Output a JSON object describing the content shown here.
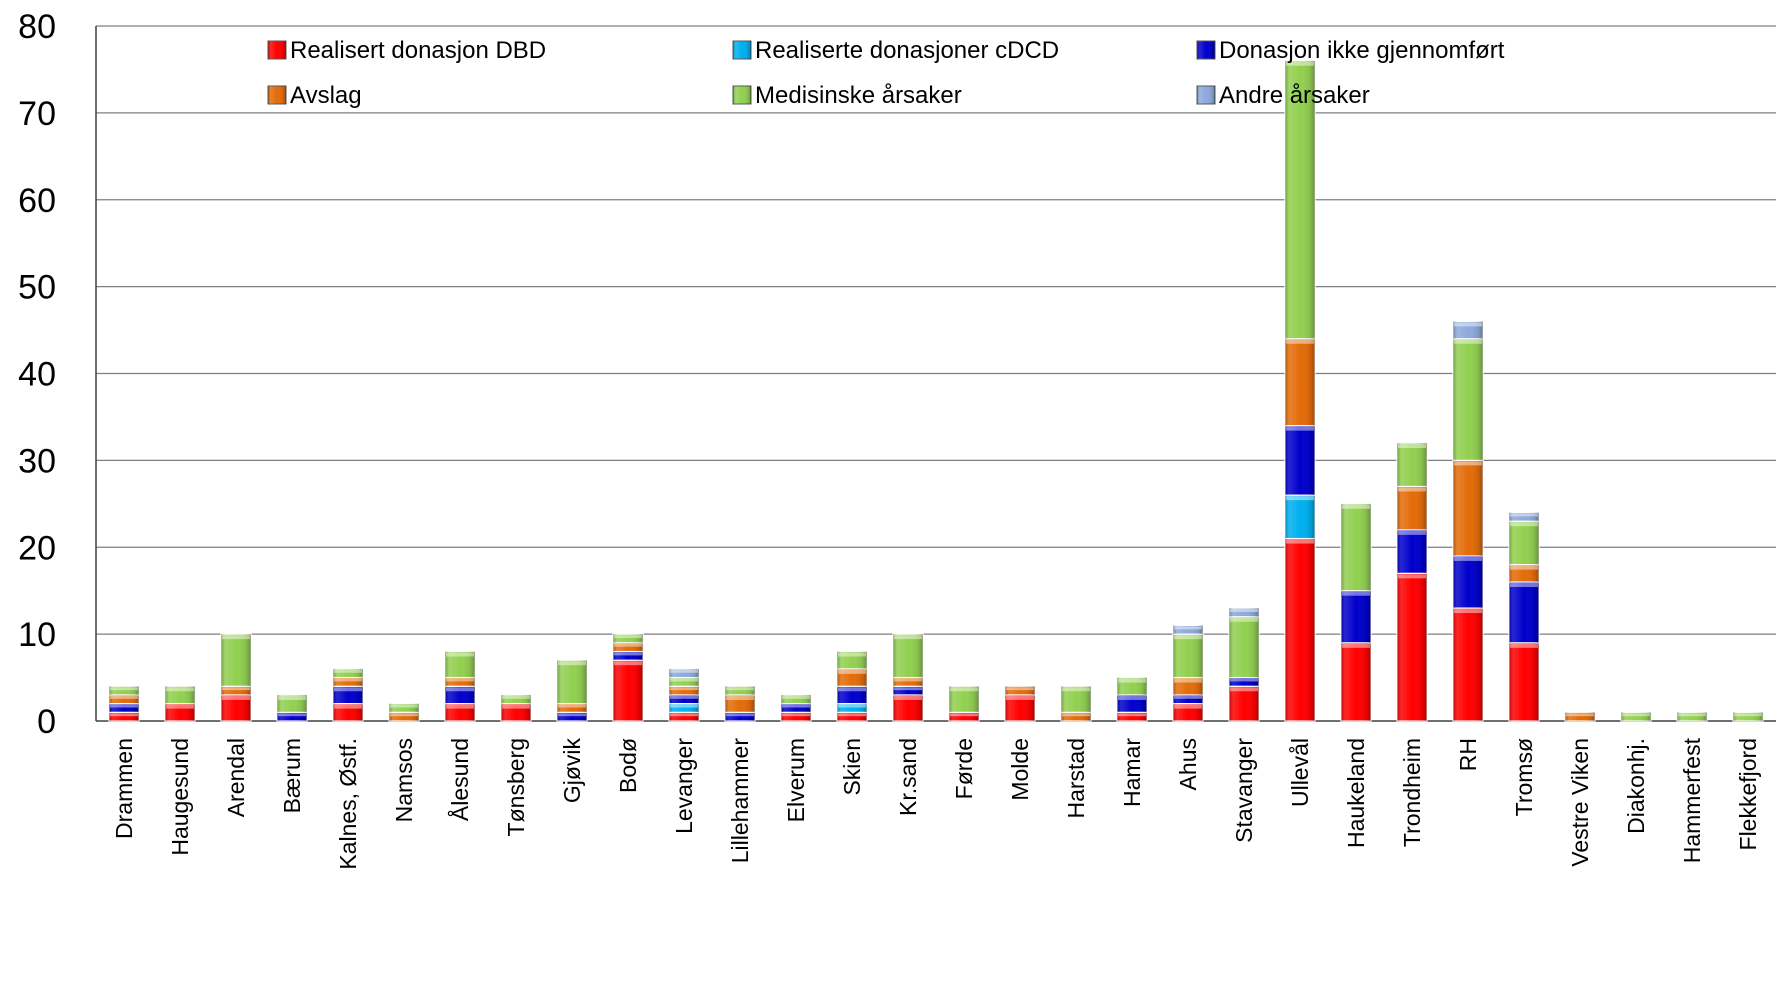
{
  "chart_data": {
    "type": "bar",
    "stacked": true,
    "title": "",
    "xlabel": "",
    "ylabel": "",
    "ylim": [
      0,
      80
    ],
    "yticks": [
      "0",
      "10",
      "20",
      "30",
      "40",
      "50",
      "60",
      "70",
      "80"
    ],
    "grid": true,
    "legend_position": "top",
    "categories": [
      "Drammen",
      "Haugesund",
      "Arendal",
      "Bærum",
      "Kalnes, Østf.",
      "Namsos",
      "Ålesund",
      "Tønsberg",
      "Gjøvik",
      "Bodø",
      "Levanger",
      "Lillehammer",
      "Elverum",
      "Skien",
      "Kr.sand",
      "Førde",
      "Molde",
      "Harstad",
      "Hamar",
      "Ahus",
      "Stavanger",
      "Ullevål",
      "Haukeland",
      "Trondheim",
      "RH",
      "Tromsø",
      "Vestre Viken",
      "Diakonhj.",
      "Hammerfest",
      "Flekkefjord"
    ],
    "series": [
      {
        "name": "Realisert donasjon DBD",
        "color": "#ff0000",
        "values": [
          1,
          2,
          3,
          0,
          2,
          0,
          2,
          2,
          0,
          7,
          1,
          0,
          1,
          1,
          3,
          1,
          3,
          0,
          1,
          2,
          4,
          21,
          9,
          17,
          13,
          9,
          0,
          0,
          0,
          0
        ]
      },
      {
        "name": "Realiserte donasjoner cDCD",
        "color": "#00b0f0",
        "values": [
          0,
          0,
          0,
          0,
          0,
          0,
          0,
          0,
          0,
          0,
          1,
          0,
          0,
          1,
          0,
          0,
          0,
          0,
          0,
          0,
          0,
          5,
          0,
          0,
          0,
          0,
          0,
          0,
          0,
          0
        ]
      },
      {
        "name": "Donasjon ikke gjennomført",
        "color": "#0000cc",
        "values": [
          1,
          0,
          0,
          1,
          2,
          0,
          2,
          0,
          1,
          1,
          1,
          1,
          1,
          2,
          1,
          0,
          0,
          0,
          2,
          1,
          1,
          8,
          6,
          5,
          6,
          7,
          0,
          0,
          0,
          0
        ]
      },
      {
        "name": "Avslag",
        "color": "#e36c09",
        "values": [
          1,
          0,
          1,
          0,
          1,
          1,
          1,
          0,
          1,
          1,
          1,
          2,
          0,
          2,
          1,
          0,
          1,
          1,
          0,
          2,
          0,
          10,
          0,
          5,
          11,
          2,
          1,
          0,
          0,
          0
        ]
      },
      {
        "name": "Medisinske årsaker",
        "color": "#92d050",
        "values": [
          1,
          2,
          6,
          2,
          1,
          1,
          3,
          1,
          5,
          1,
          1,
          1,
          1,
          2,
          5,
          3,
          0,
          3,
          2,
          5,
          7,
          32,
          10,
          5,
          14,
          5,
          0,
          1,
          1,
          1
        ]
      },
      {
        "name": "Andre årsaker",
        "color": "#8ea9db",
        "values": [
          0,
          0,
          0,
          0,
          0,
          0,
          0,
          0,
          0,
          0,
          1,
          0,
          0,
          0,
          0,
          0,
          0,
          0,
          0,
          1,
          1,
          0,
          0,
          0,
          2,
          1,
          0,
          0,
          0,
          0
        ]
      }
    ]
  }
}
